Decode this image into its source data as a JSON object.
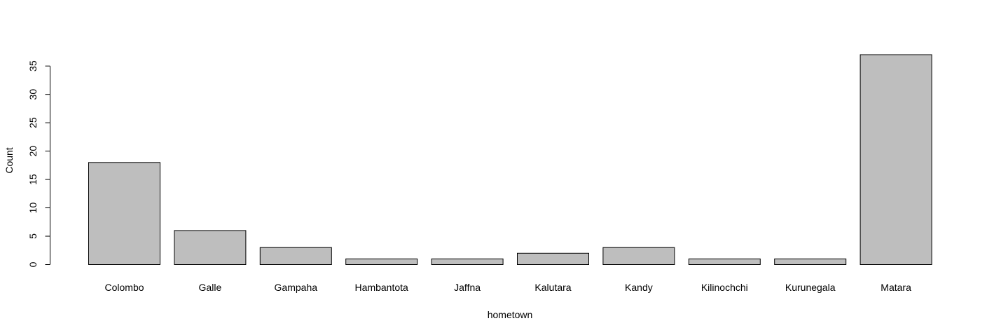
{
  "chart_data": {
    "type": "bar",
    "title": "",
    "xlabel": "hometown",
    "ylabel": "Count",
    "categories": [
      "Colombo",
      "Galle",
      "Gampaha",
      "Hambantota",
      "Jaffna",
      "Kalutara",
      "Kandy",
      "Kilinochchi",
      "Kurunegala",
      "Matara"
    ],
    "values": [
      18,
      6,
      3,
      1,
      1,
      2,
      3,
      1,
      1,
      37
    ],
    "ylim": [
      0,
      37
    ],
    "yticks": [
      0,
      5,
      10,
      15,
      20,
      25,
      30,
      35
    ],
    "bar_color": "#bebebe",
    "edge_color": "#000000",
    "grid": false,
    "legend": "none"
  }
}
